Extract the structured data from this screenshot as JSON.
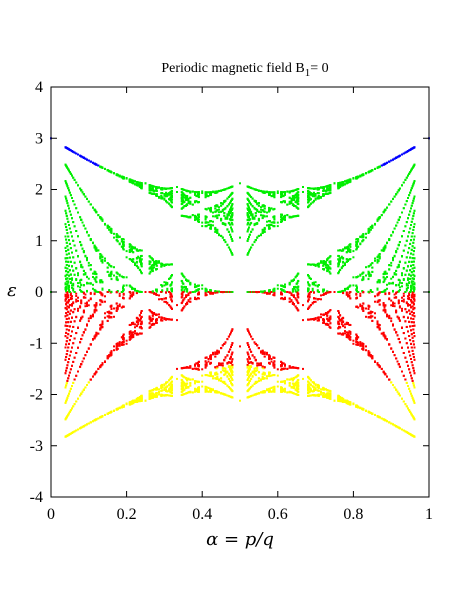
{
  "chart_data": {
    "type": "scatter",
    "title": "Periodic magnetic field B",
    "title_subscript": "1",
    "title_suffix": "= 0",
    "xlabel": "α = p/q",
    "ylabel": "ε",
    "xlim": [
      0,
      1
    ],
    "ylim": [
      -4,
      4
    ],
    "x_ticks": [
      "0",
      "0.2",
      "0.4",
      "0.6",
      "0.8",
      "1"
    ],
    "y_ticks": [
      "4",
      "3",
      "2",
      "1",
      "0",
      "-1",
      "-2",
      "-3",
      "-4"
    ],
    "grid": false,
    "legend": "none",
    "series_colors": [
      "#0000ff",
      "#00ee00",
      "#ff0000",
      "#ffff00"
    ],
    "bands": [
      {
        "color": "#0000ff",
        "energy_range": [
          2.3,
          3.15
        ]
      },
      {
        "color": "#00ee00",
        "energy_range": [
          0,
          2.55
        ]
      },
      {
        "color": "#ff0000",
        "energy_range": [
          -2.55,
          0
        ]
      },
      {
        "color": "#ffff00",
        "energy_range": [
          -3.15,
          -1.3
        ]
      }
    ]
  }
}
